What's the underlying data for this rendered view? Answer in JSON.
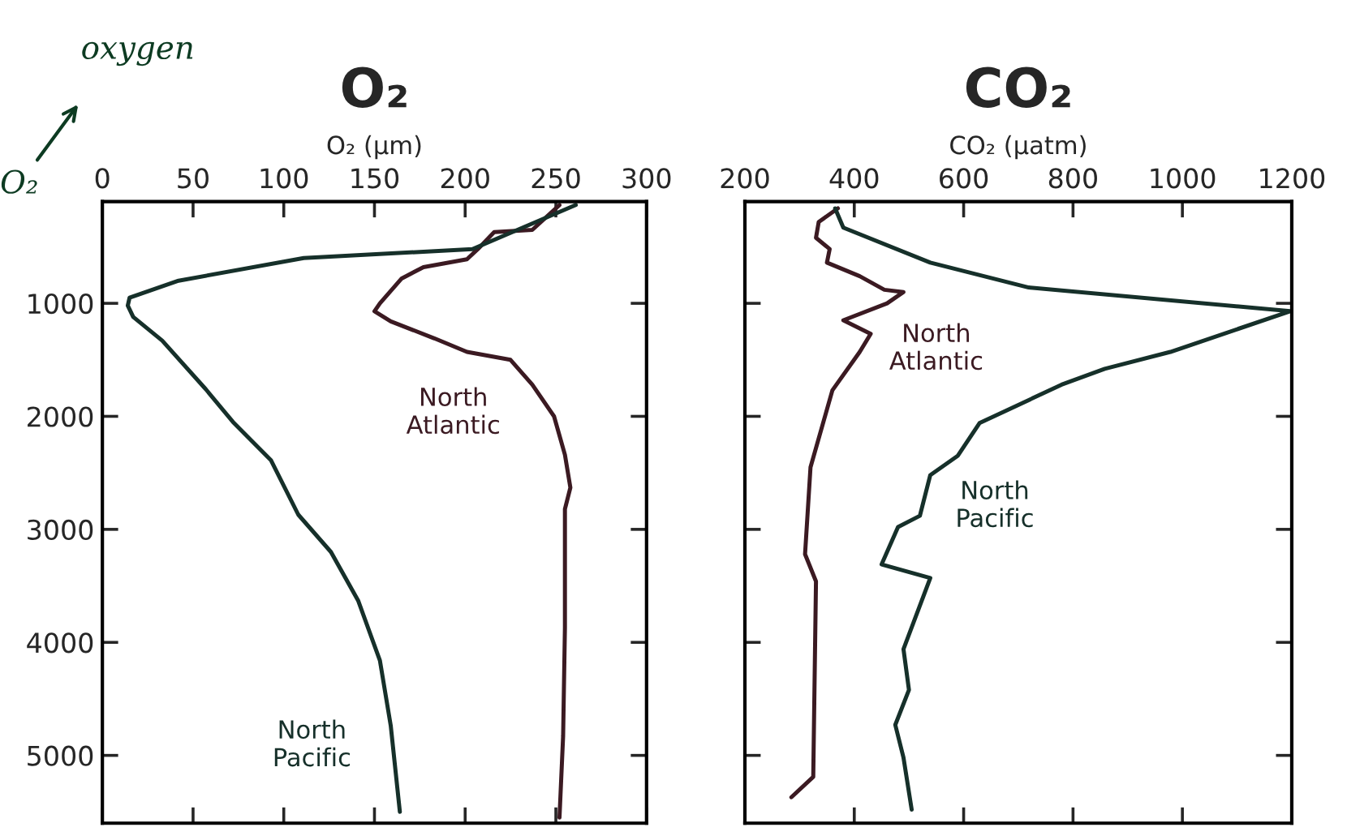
{
  "chart_data": [
    {
      "type": "line",
      "title": "O₂",
      "xlabel": "O₂ (µm)",
      "xlim": [
        0,
        300
      ],
      "xticks": [
        0,
        50,
        100,
        150,
        200,
        250,
        300
      ],
      "ylim": [
        5600,
        100
      ],
      "yticks": [
        1000,
        2000,
        3000,
        4000,
        5000
      ],
      "grid": false,
      "legend": false,
      "annotations": [
        "oxygen",
        "O₂"
      ],
      "series": [
        {
          "name": "North Atlantic",
          "color": "#3b1a22",
          "x": [
            252,
            237,
            216,
            207,
            201,
            177,
            165,
            153,
            150,
            159,
            183,
            201,
            225,
            237,
            249,
            255,
            258,
            255,
            255,
            254,
            252
          ],
          "values": [
            130,
            350,
            370,
            520,
            610,
            680,
            780,
            1000,
            1070,
            1160,
            1310,
            1430,
            1500,
            1720,
            2000,
            2340,
            2630,
            2820,
            3870,
            4830,
            5550
          ]
        },
        {
          "name": "North Pacific",
          "color": "#16302a",
          "x": [
            261,
            204,
            111,
            42,
            15,
            14,
            17,
            33,
            57,
            72,
            93,
            108,
            126,
            141,
            153,
            159,
            164
          ],
          "values": [
            130,
            520,
            600,
            800,
            950,
            1020,
            1120,
            1330,
            1760,
            2050,
            2390,
            2870,
            3200,
            3630,
            4160,
            4740,
            5500
          ]
        }
      ]
    },
    {
      "type": "line",
      "title": "CO₂",
      "xlabel": "CO₂ (µatm)",
      "xlim": [
        200,
        1200
      ],
      "xticks": [
        200,
        400,
        600,
        800,
        1000,
        1200
      ],
      "ylim": [
        5600,
        100
      ],
      "yticks": [
        1000,
        2000,
        3000,
        4000,
        5000
      ],
      "tick_labels": "x",
      "grid": false,
      "legend": false,
      "series": [
        {
          "name": "North Atlantic",
          "color": "#3b1a22",
          "x": [
            370,
            335,
            330,
            355,
            350,
            410,
            455,
            490,
            460,
            380,
            430,
            410,
            360,
            320,
            310,
            330,
            325,
            285
          ],
          "values": [
            160,
            280,
            420,
            520,
            640,
            760,
            880,
            900,
            1000,
            1150,
            1270,
            1430,
            1770,
            2450,
            3220,
            3460,
            5190,
            5370
          ]
        },
        {
          "name": "North Pacific",
          "color": "#16302a",
          "x": [
            365,
            380,
            539,
            719,
            1197,
            978,
            858,
            779,
            629,
            589,
            539,
            520,
            480,
            450,
            539,
            490,
            500,
            475,
            490,
            505
          ],
          "values": [
            160,
            330,
            640,
            860,
            1070,
            1430,
            1580,
            1720,
            2060,
            2350,
            2520,
            2880,
            2980,
            3310,
            3430,
            4060,
            4420,
            4730,
            5020,
            5480
          ]
        }
      ]
    }
  ]
}
